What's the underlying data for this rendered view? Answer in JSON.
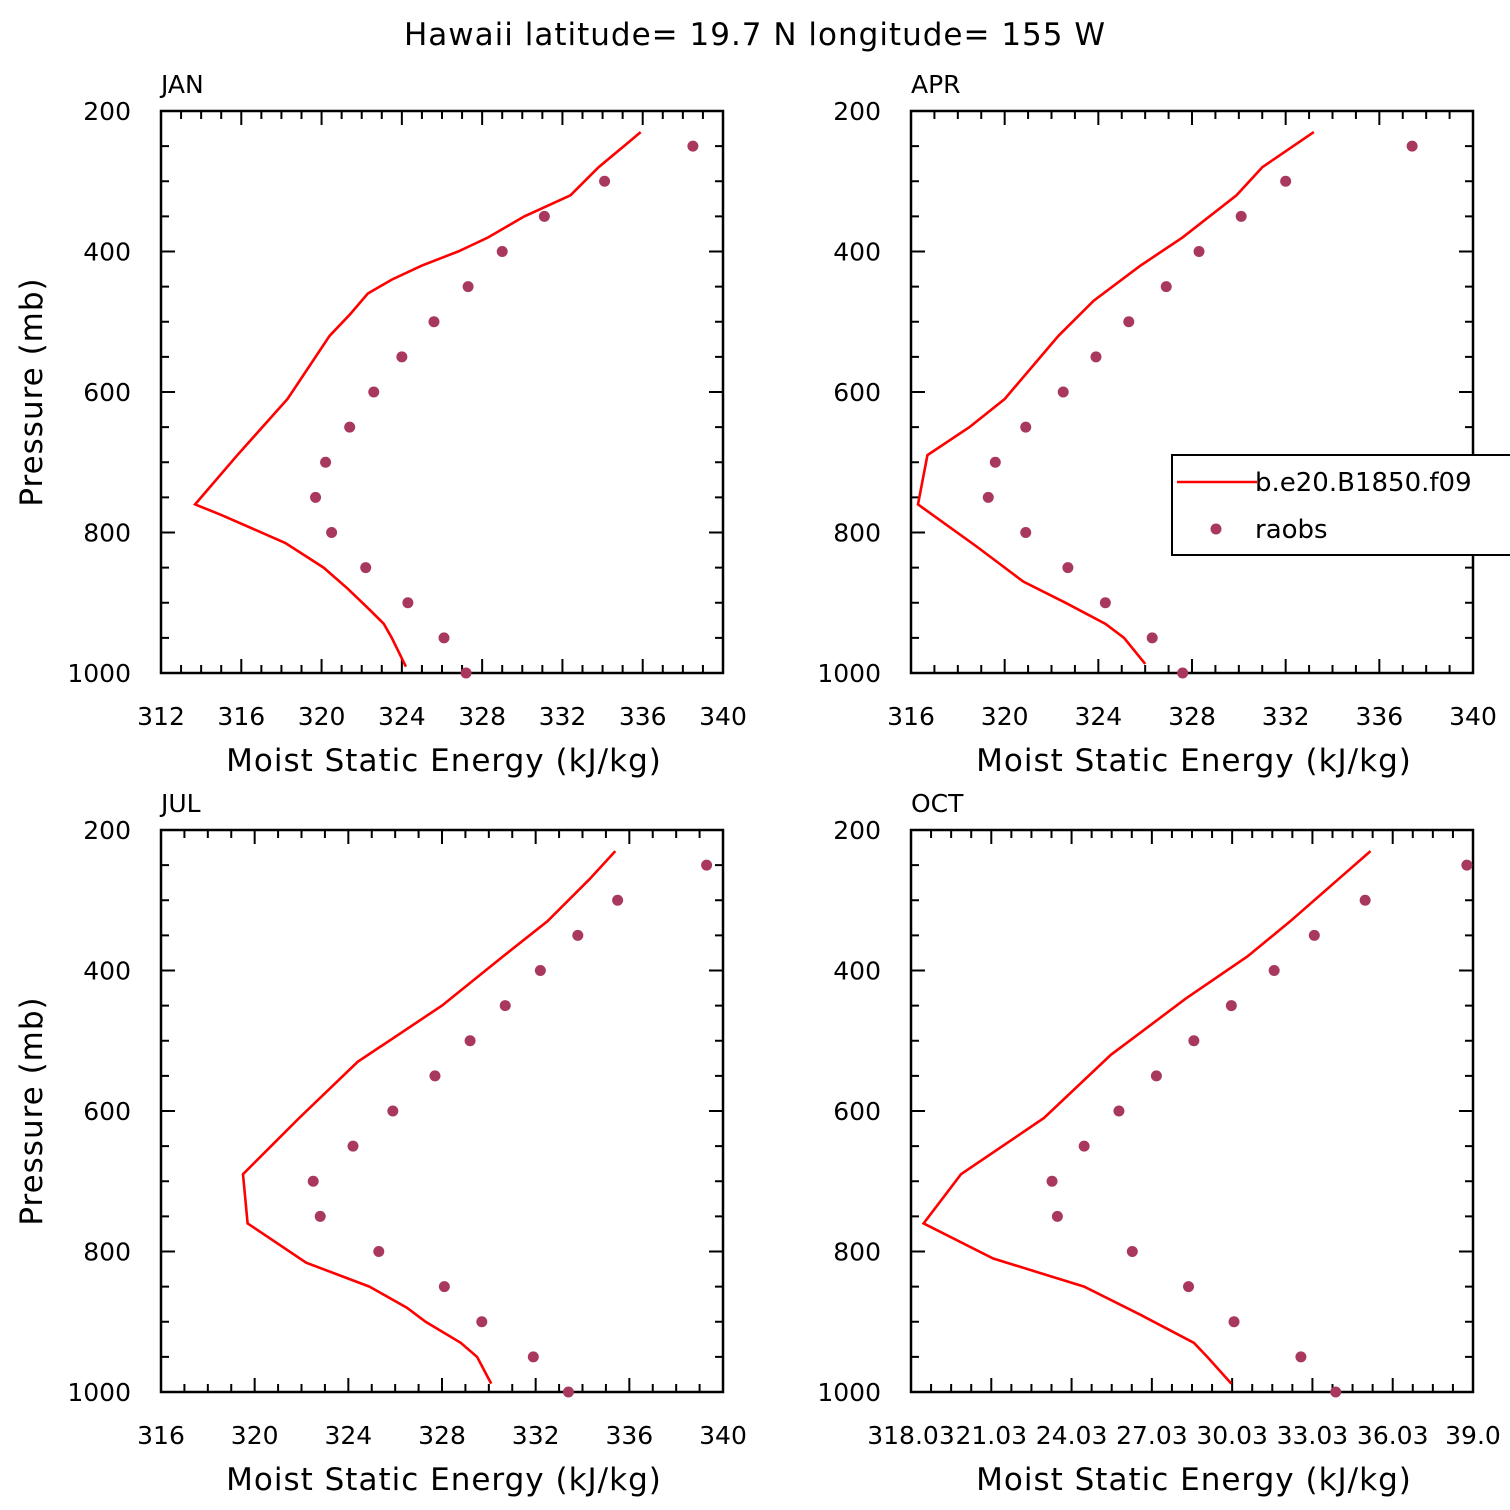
{
  "title": "Hawaii  latitude= 19.7 N longitude= 155 W",
  "colors": {
    "model": "#ff0000",
    "obs": "#a8385e",
    "axis": "#000000"
  },
  "legend": {
    "placement": "right-middle",
    "series_line": "b.e20.B1850.f09",
    "series_dots": "raobs"
  },
  "chart_data": [
    {
      "type": "line",
      "label": "JAN",
      "xlabel": "Moist Static Energy (kJ/kg)",
      "ylabel": "Pressure (mb)",
      "xlim": [
        312,
        340
      ],
      "ylim": [
        1000,
        200
      ],
      "y_inverted": true,
      "xticks": [
        "312",
        "316",
        "320",
        "324",
        "328",
        "332",
        "336",
        "340"
      ],
      "yticks": [
        "200",
        "400",
        "600",
        "800",
        "1000"
      ],
      "series": [
        {
          "kind": "line",
          "x": [
            324.2,
            323.5,
            323.1,
            322.4,
            321.3,
            320.1,
            318.2,
            315.0,
            313.7,
            315.8,
            318.3,
            320.4,
            321.4,
            322.3,
            323.5,
            325.0,
            326.8,
            328.3,
            330.1,
            332.4,
            333.8,
            335.9
          ],
          "y": [
            991,
            950,
            930,
            910,
            880,
            850,
            815,
            775,
            760,
            690,
            610,
            520,
            490,
            460,
            440,
            420,
            400,
            380,
            350,
            320,
            280,
            230
          ]
        },
        {
          "kind": "scatter",
          "x": [
            338.5,
            334.1,
            331.1,
            329.0,
            327.3,
            325.6,
            324.0,
            322.6,
            321.4,
            320.2,
            319.7,
            320.5,
            322.2,
            324.3,
            326.1,
            327.2
          ],
          "y": [
            250,
            300,
            350,
            400,
            450,
            500,
            550,
            600,
            650,
            700,
            750,
            800,
            850,
            900,
            950,
            1000
          ]
        }
      ]
    },
    {
      "type": "line",
      "label": "APR",
      "xlabel": "Moist Static Energy (kJ/kg)",
      "ylabel": "",
      "xlim": [
        316,
        340
      ],
      "ylim": [
        1000,
        200
      ],
      "y_inverted": true,
      "xticks": [
        "316",
        "320",
        "324",
        "328",
        "332",
        "336",
        "340"
      ],
      "yticks": [
        "200",
        "400",
        "600",
        "800",
        "1000"
      ],
      "series": [
        {
          "kind": "line",
          "x": [
            326.0,
            325.1,
            324.3,
            322.6,
            320.8,
            318.8,
            316.3,
            316.7,
            318.5,
            320.0,
            322.3,
            323.8,
            325.8,
            327.6,
            329.9,
            331.0,
            333.2
          ],
          "y": [
            987,
            950,
            930,
            900,
            870,
            820,
            760,
            690,
            650,
            610,
            520,
            470,
            420,
            380,
            320,
            280,
            230
          ]
        },
        {
          "kind": "scatter",
          "x": [
            337.4,
            332.0,
            330.1,
            328.3,
            326.9,
            325.3,
            323.9,
            322.5,
            320.9,
            319.6,
            319.3,
            320.9,
            322.7,
            324.3,
            326.3,
            327.6
          ],
          "y": [
            250,
            300,
            350,
            400,
            450,
            500,
            550,
            600,
            650,
            700,
            750,
            800,
            850,
            900,
            950,
            1000
          ]
        }
      ]
    },
    {
      "type": "line",
      "label": "JUL",
      "xlabel": "Moist Static Energy (kJ/kg)",
      "ylabel": "Pressure (mb)",
      "xlim": [
        316,
        340
      ],
      "ylim": [
        1000,
        200
      ],
      "y_inverted": true,
      "xticks": [
        "316",
        "320",
        "324",
        "328",
        "332",
        "336",
        "340"
      ],
      "yticks": [
        "200",
        "400",
        "600",
        "800",
        "1000"
      ],
      "series": [
        {
          "kind": "line",
          "x": [
            330.1,
            329.5,
            328.8,
            327.3,
            326.5,
            324.9,
            322.2,
            319.7,
            319.5,
            321.9,
            324.4,
            328.0,
            330.6,
            332.5,
            334.3,
            335.4
          ],
          "y": [
            988,
            950,
            930,
            900,
            880,
            850,
            816,
            760,
            690,
            610,
            530,
            450,
            380,
            330,
            270,
            230
          ]
        },
        {
          "kind": "scatter",
          "x": [
            339.3,
            335.5,
            333.8,
            332.2,
            330.7,
            329.2,
            327.7,
            325.9,
            324.2,
            322.5,
            322.8,
            325.3,
            328.1,
            329.7,
            331.9,
            333.4
          ],
          "y": [
            250,
            300,
            350,
            400,
            450,
            500,
            550,
            600,
            650,
            700,
            750,
            800,
            850,
            900,
            950,
            1000
          ]
        }
      ]
    },
    {
      "type": "line",
      "label": "OCT",
      "xlabel": "Moist Static Energy (kJ/kg)",
      "ylabel": "",
      "xlim": [
        318.03,
        339.03
      ],
      "ylim": [
        1000,
        200
      ],
      "y_inverted": true,
      "xticks": [
        "318.03",
        "21.03",
        "24.03",
        "27.03",
        "30.03",
        "33.03",
        "36.03",
        "39.0"
      ],
      "yticks": [
        "200",
        "400",
        "600",
        "800",
        "1000"
      ],
      "series": [
        {
          "kind": "line",
          "x": [
            330.0,
            329.1,
            328.6,
            326.6,
            324.5,
            321.1,
            318.5,
            319.9,
            323.0,
            325.5,
            328.3,
            330.6,
            332.2,
            334.0,
            335.2
          ],
          "y": [
            988,
            950,
            930,
            890,
            850,
            810,
            760,
            690,
            610,
            520,
            440,
            380,
            330,
            270,
            230
          ]
        },
        {
          "kind": "scatter",
          "x": [
            338.8,
            335.0,
            333.1,
            331.6,
            330.0,
            328.6,
            327.2,
            325.8,
            324.5,
            323.3,
            323.5,
            326.3,
            328.4,
            330.1,
            332.6,
            333.9
          ],
          "y": [
            250,
            300,
            350,
            400,
            450,
            500,
            550,
            600,
            650,
            700,
            750,
            800,
            850,
            900,
            950,
            1000
          ]
        }
      ]
    }
  ]
}
